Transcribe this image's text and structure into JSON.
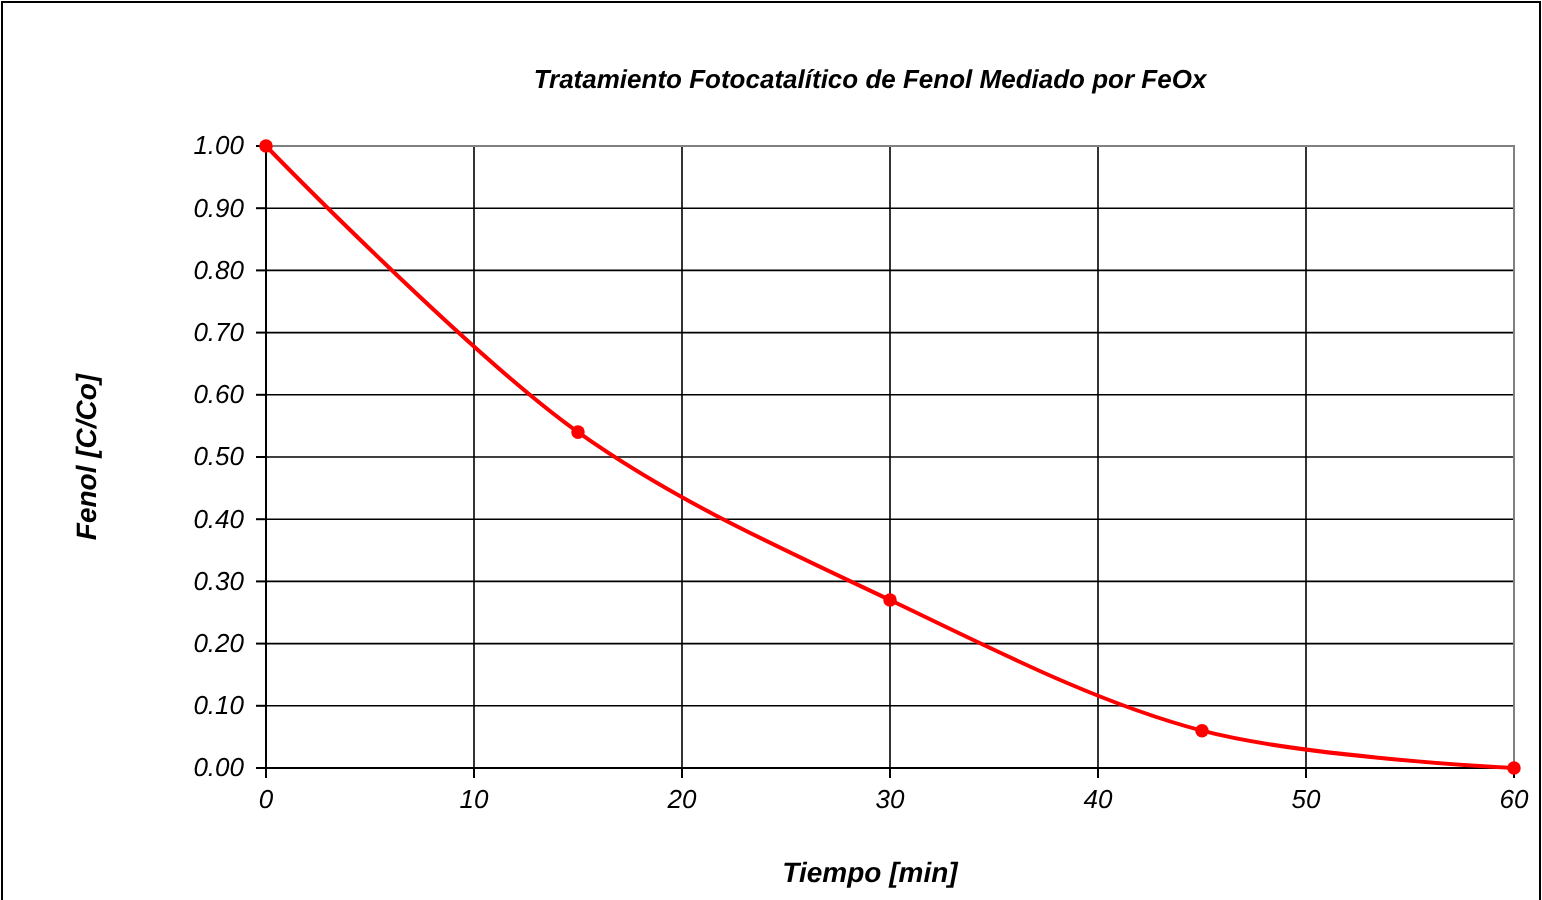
{
  "chart_data": {
    "type": "line",
    "title": "Tratamiento Fotocatalítico de Fenol Mediado por FeOx",
    "xlabel": "Tiempo [min]",
    "ylabel": "Fenol [C/Co]",
    "x": [
      0,
      15,
      30,
      45,
      60
    ],
    "series": [
      {
        "color": "#ff0000",
        "values": [
          1.0,
          0.54,
          0.27,
          0.06,
          0.0
        ]
      }
    ],
    "xlim": [
      0,
      60
    ],
    "xticks": [
      0,
      10,
      20,
      30,
      40,
      50,
      60
    ],
    "ylim": [
      0,
      1
    ],
    "yticks": [
      {
        "value": 0,
        "label": "0.00"
      },
      {
        "value": 0.1,
        "label": "0.10"
      },
      {
        "value": 0.2,
        "label": "0.20"
      },
      {
        "value": 0.3,
        "label": "0.30"
      },
      {
        "value": 0.4,
        "label": "0.40"
      },
      {
        "value": 0.5,
        "label": "0.50"
      },
      {
        "value": 0.6,
        "label": "0.60"
      },
      {
        "value": 0.7,
        "label": "0.70"
      },
      {
        "value": 0.8,
        "label": "0.80"
      },
      {
        "value": 0.9,
        "label": "0.90"
      },
      {
        "value": 1,
        "label": "1.00"
      }
    ],
    "grid": true,
    "marker": "circle",
    "line_style": "solid"
  }
}
